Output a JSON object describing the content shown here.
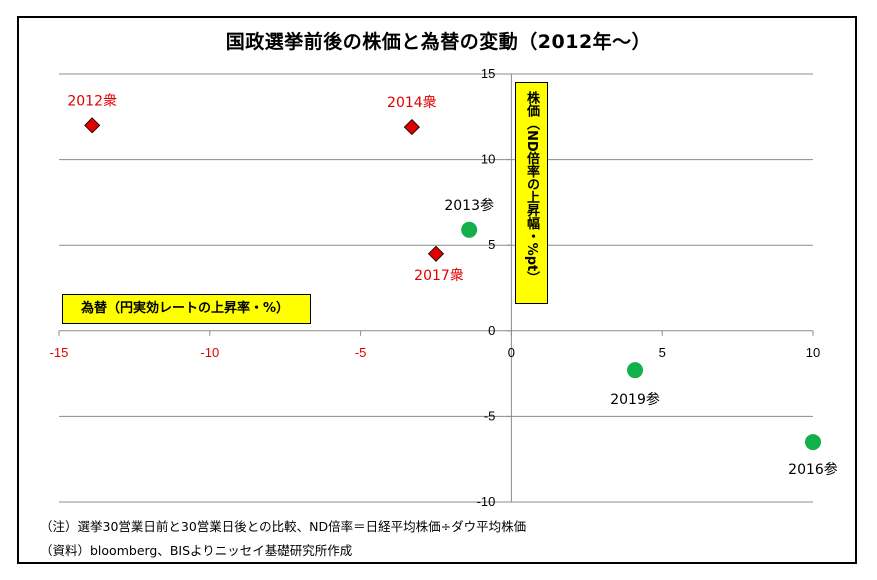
{
  "chart_data": {
    "type": "scatter",
    "title": "国政選挙前後の株価と為替の変動（2012年～）",
    "xlabel": "為替（円実効レートの上昇率・%）",
    "ylabel": "株価（ND倍率の上昇幅・%pt）",
    "xlim": [
      -15,
      10
    ],
    "ylim": [
      -10,
      15
    ],
    "x_ticks": [
      -15,
      -10,
      -5,
      0,
      5,
      10
    ],
    "y_ticks": [
      -10,
      -5,
      0,
      5,
      10,
      15
    ],
    "x_tick_labels": [
      "-15",
      "-10",
      "-5",
      "0",
      "5",
      "10"
    ],
    "y_tick_labels": [
      "-10",
      "-5",
      "0",
      "5",
      "10",
      "15"
    ],
    "grid": "horizontal",
    "series": [
      {
        "color": "#e00000",
        "marker": "diamond",
        "points": [
          {
            "label": "2012衆",
            "x": -13.9,
            "y": 12.0
          },
          {
            "label": "2014衆",
            "x": -3.3,
            "y": 11.9
          },
          {
            "label": "2017衆",
            "x": -2.5,
            "y": 4.5
          }
        ]
      },
      {
        "color": "#12b04a",
        "marker": "circle",
        "points": [
          {
            "label": "2013参",
            "x": -1.4,
            "y": 5.9
          },
          {
            "label": "2019参",
            "x": 4.1,
            "y": -2.3
          },
          {
            "label": "2016参",
            "x": 10.0,
            "y": -6.5
          }
        ]
      }
    ]
  },
  "notes": {
    "line1": "（注）選挙30営業日前と30営業日後との比較、ND倍率＝日経平均株価÷ダウ平均株価",
    "line2": "（資料）bloomberg、BISよりニッセイ基礎研究所作成"
  }
}
